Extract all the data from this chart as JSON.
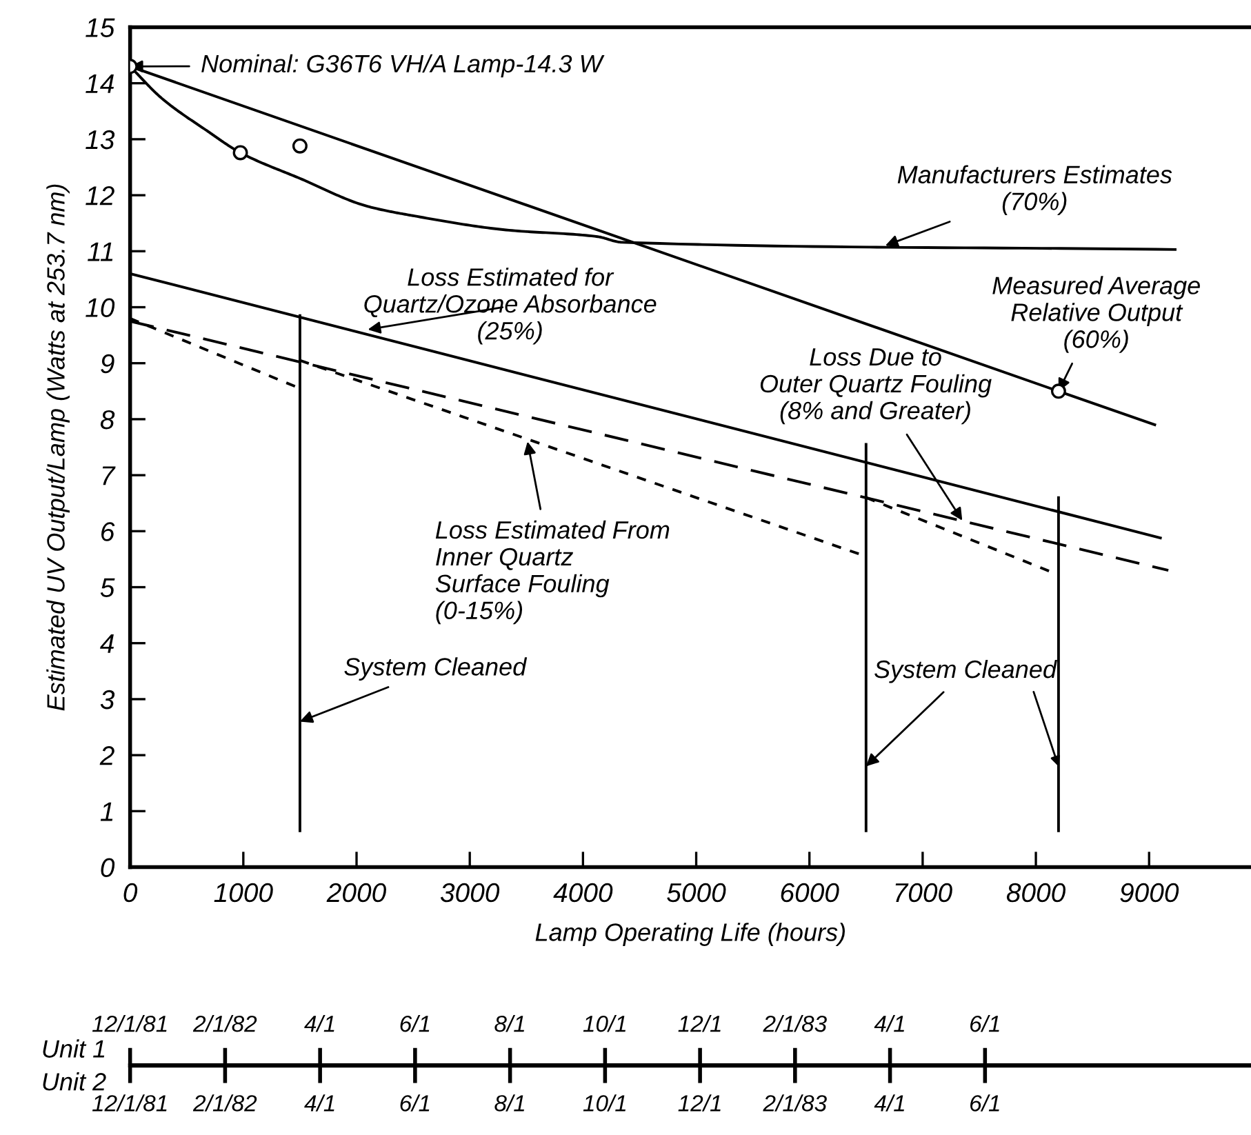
{
  "chart_data": [
    {
      "type": "line",
      "xlabel": "Lamp Operating Life (hours)",
      "ylabel": "Estimated UV Output/Lamp (Watts at 253.7 nm)",
      "xlim": [
        0,
        9900
      ],
      "xticks": [
        0,
        1000,
        2000,
        3000,
        4000,
        5000,
        6000,
        7000,
        8000,
        9000
      ],
      "ylim": [
        0,
        15
      ],
      "yticks": [
        0,
        1,
        2,
        3,
        4,
        5,
        6,
        7,
        8,
        9,
        10,
        11,
        12,
        13,
        14,
        15
      ],
      "series": [
        {
          "type": "line",
          "color": "#000000",
          "line_style": "solid",
          "x": [
            0,
            8200,
            9050
          ],
          "values": [
            14.3,
            8.5,
            7.9
          ]
        },
        {
          "type": "line",
          "color": "#000000",
          "line_style": "solid",
          "x": [
            0,
            280,
            680,
            974,
            1500,
            2100,
            2510,
            3320,
            4130,
            4340,
            9230
          ],
          "values": [
            14.3,
            13.73,
            13.15,
            12.76,
            12.3,
            11.8,
            11.63,
            11.38,
            11.26,
            11.16,
            11.03
          ]
        },
        {
          "type": "line",
          "color": "#000000",
          "line_style": "solid",
          "x": [
            0,
            9100
          ],
          "values": [
            10.6,
            5.88
          ]
        },
        {
          "type": "line",
          "color": "#000000",
          "line_style": "dashed",
          "x": [
            0,
            9170
          ],
          "values": [
            9.75,
            5.3
          ]
        },
        {
          "type": "line",
          "color": "#000000",
          "line_style": "dotted",
          "x": [
            0,
            1500
          ],
          "values": [
            9.8,
            8.55
          ]
        },
        {
          "type": "line",
          "color": "#000000",
          "line_style": "dotted",
          "x": [
            1500,
            6500
          ],
          "values": [
            9.05,
            5.55
          ]
        },
        {
          "type": "line",
          "color": "#000000",
          "line_style": "dotted",
          "x": [
            6500,
            8200
          ],
          "values": [
            6.6,
            5.22
          ]
        },
        {
          "type": "line",
          "color": "#000000",
          "line_style": "solid",
          "x": [
            1500,
            1500
          ],
          "values": [
            0.65,
            9.85
          ]
        },
        {
          "type": "line",
          "color": "#000000",
          "line_style": "solid",
          "x": [
            6500,
            6500
          ],
          "values": [
            0.65,
            7.55
          ]
        },
        {
          "type": "line",
          "color": "#000000",
          "line_style": "solid",
          "x": [
            8200,
            8200
          ],
          "values": [
            0.65,
            6.6
          ]
        },
        {
          "type": "scatter",
          "color": "#000000",
          "marker": "circle",
          "x": [
            0,
            974,
            1500,
            8200
          ],
          "values": [
            14.3,
            12.76,
            12.88,
            8.5
          ]
        }
      ],
      "annotations": [
        {
          "text": "Nominal: G36T6 VH/A Lamp-14.3 W",
          "x": 0,
          "y": 14.3
        },
        {
          "text": "Manufacturers Estimates\n(70%)",
          "x": 6670,
          "y": 11.1
        },
        {
          "text": "Loss Estimated for\nQuartz/Ozone Absorbance\n(25%)",
          "x": 2100,
          "y": 9.6
        },
        {
          "text": "Measured Average\nRelative Output\n(60%)",
          "x": 8200,
          "y": 8.5
        },
        {
          "text": "Loss Due to\nOuter Quartz Fouling\n(8% and Greater)",
          "x": 7350,
          "y": 6.19
        },
        {
          "text": "Loss Estimated From\nInner Quartz\nSurface Fouling\n(0-15%)",
          "x": 3510,
          "y": 7.6
        },
        {
          "text": "System Cleaned",
          "x": 1500,
          "y": 2.6
        },
        {
          "text": "System Cleaned",
          "x": 6500,
          "y": 1.8
        }
      ]
    },
    {
      "type": "other",
      "xlabel": "Unit 1",
      "categories": [
        "12/1/81",
        "2/1/82",
        "4/1",
        "6/1",
        "8/1",
        "10/1",
        "12/1",
        "2/1/83",
        "4/1",
        "6/1"
      ]
    },
    {
      "type": "other",
      "xlabel": "Unit 2",
      "categories": [
        "12/1/81",
        "2/1/82",
        "4/1",
        "6/1",
        "8/1",
        "10/1",
        "12/1",
        "2/1/83",
        "4/1",
        "6/1"
      ]
    }
  ]
}
